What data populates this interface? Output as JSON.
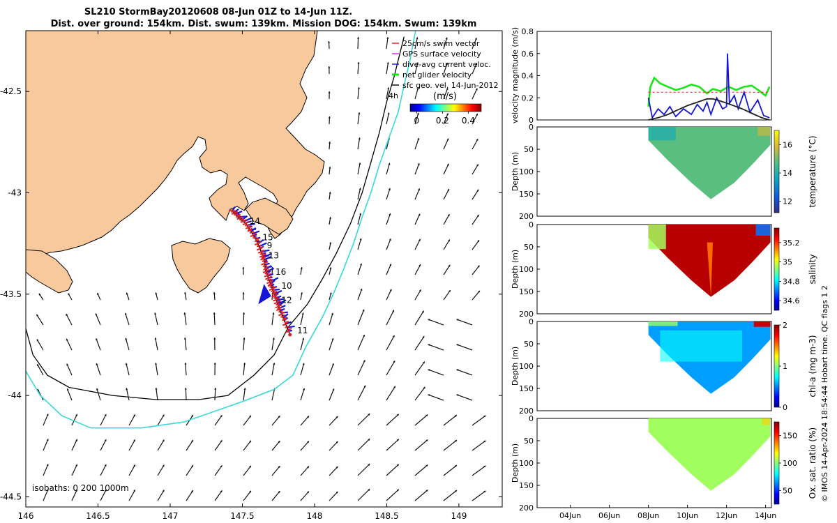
{
  "title": {
    "line1": "SL210 StormBay20120608 08-Jun 01Z to 14-Jun 11Z.",
    "line2": "Dist. over ground: 154km. Dist. swum: 139km. Mission DOG: 154km. Swum: 139km"
  },
  "credit": "© IMOS 14-Apr-2024 18:54:44 Hobart time. QC flags 1  2",
  "colors": {
    "land": "#f8c99c",
    "coast": "#000000",
    "track": "#e0201c",
    "current": "#1515d8",
    "isobath200": "#000000",
    "isobath1000": "#38d8d8",
    "glider": "#19e619",
    "sfc": "#202020"
  },
  "chart_data": [
    {
      "type": "map",
      "name": "glider-track-map",
      "xlim": [
        146.0,
        149.3
      ],
      "ylim": [
        -44.55,
        -42.2
      ],
      "xticks": [
        146,
        146.5,
        147,
        147.5,
        148,
        148.5,
        149
      ],
      "xtick_labels": [
        "146",
        "146.5",
        "147",
        "147.5",
        "148",
        "148.5",
        "149"
      ],
      "yticks": [
        -42.5,
        -43,
        -43.5,
        -44,
        -44.5
      ],
      "ytick_labels": [
        "-42.5",
        "-43",
        "-43.5",
        "-44",
        "-44.5"
      ],
      "legend": [
        {
          "label": "25cm/s swim vector",
          "color": "#e0201c"
        },
        {
          "label": "GPS surface velocity",
          "color": "#d020d0"
        },
        {
          "label": "dive-avg current veloc.",
          "color": "#1515d8"
        },
        {
          "label": "net glider velocity",
          "color": "#19e619"
        },
        {
          "label": "sfc geo. vel. 14-Jun-2012",
          "color": "#000000"
        }
      ],
      "legend_note": "4h",
      "colorbar": {
        "label": "(m/s)",
        "ticks": [
          0,
          0.2,
          0.4
        ],
        "tick_labels": [
          "0",
          "0.2",
          "0.4"
        ],
        "range": [
          -0.05,
          0.5
        ]
      },
      "isobath_label": "isobaths: 0   200  1000m",
      "track": [
        [
          147.43,
          -43.09
        ],
        [
          147.47,
          -43.12
        ],
        [
          147.52,
          -43.15
        ],
        [
          147.56,
          -43.19
        ],
        [
          147.6,
          -43.24
        ],
        [
          147.63,
          -43.29
        ],
        [
          147.65,
          -43.33
        ],
        [
          147.66,
          -43.38
        ],
        [
          147.68,
          -43.42
        ],
        [
          147.7,
          -43.46
        ],
        [
          147.72,
          -43.5
        ],
        [
          147.74,
          -43.54
        ],
        [
          147.76,
          -43.58
        ],
        [
          147.79,
          -43.63
        ],
        [
          147.83,
          -43.7
        ]
      ],
      "day_labels": [
        {
          "text": "14",
          "lon": 147.55,
          "lat": -43.14
        },
        {
          "text": "15",
          "lon": 147.64,
          "lat": -43.22
        },
        {
          "text": "9",
          "lon": 147.67,
          "lat": -43.26
        },
        {
          "text": "13",
          "lon": 147.68,
          "lat": -43.31
        },
        {
          "text": "16",
          "lon": 147.73,
          "lat": -43.39
        },
        {
          "text": "10",
          "lon": 147.77,
          "lat": -43.46
        },
        {
          "text": "12",
          "lon": 147.77,
          "lat": -43.53
        },
        {
          "text": "11",
          "lon": 147.88,
          "lat": -43.68
        }
      ],
      "isobath200": [
        [
          146.0,
          -43.67
        ],
        [
          146.05,
          -43.8
        ],
        [
          146.15,
          -43.9
        ],
        [
          146.3,
          -43.96
        ],
        [
          146.6,
          -44.0
        ],
        [
          146.9,
          -44.02
        ],
        [
          147.2,
          -44.02
        ],
        [
          147.4,
          -44.0
        ],
        [
          147.58,
          -43.9
        ],
        [
          147.72,
          -43.8
        ],
        [
          147.82,
          -43.66
        ],
        [
          147.95,
          -43.55
        ],
        [
          148.05,
          -43.43
        ],
        [
          148.15,
          -43.3
        ],
        [
          148.25,
          -43.15
        ],
        [
          148.33,
          -43.0
        ],
        [
          148.39,
          -42.85
        ],
        [
          148.45,
          -42.7
        ],
        [
          148.5,
          -42.55
        ],
        [
          148.55,
          -42.43
        ],
        [
          148.62,
          -42.23
        ]
      ],
      "isobath1000": [
        [
          146.0,
          -43.88
        ],
        [
          146.1,
          -44.0
        ],
        [
          146.25,
          -44.1
        ],
        [
          146.45,
          -44.16
        ],
        [
          146.8,
          -44.16
        ],
        [
          147.1,
          -44.13
        ],
        [
          147.3,
          -44.08
        ],
        [
          147.5,
          -44.03
        ],
        [
          147.72,
          -43.97
        ],
        [
          147.85,
          -43.9
        ],
        [
          147.94,
          -43.76
        ],
        [
          148.05,
          -43.62
        ],
        [
          148.13,
          -43.5
        ],
        [
          148.2,
          -43.38
        ],
        [
          148.27,
          -43.25
        ],
        [
          148.33,
          -43.12
        ],
        [
          148.39,
          -43.0
        ],
        [
          148.45,
          -42.86
        ],
        [
          148.52,
          -42.72
        ],
        [
          148.58,
          -42.6
        ],
        [
          148.62,
          -42.47
        ],
        [
          148.66,
          -42.35
        ],
        [
          148.7,
          -42.2
        ]
      ]
    },
    {
      "type": "line",
      "name": "velocity-magnitude",
      "ylabel": "velocity magnitude (m/s)",
      "ylim": [
        0,
        0.8
      ],
      "yticks": [
        0,
        0.2,
        0.4,
        0.6,
        0.8
      ],
      "ytick_labels": [
        "0",
        "0.2",
        "0.4",
        "0.6",
        "0.8"
      ],
      "xlim": [
        2.3,
        14.3
      ],
      "series": [
        {
          "name": "net glider velocity",
          "color": "#19e619",
          "x": [
            8.0,
            8.1,
            8.3,
            8.6,
            9.0,
            9.4,
            9.8,
            10.2,
            10.6,
            11.0,
            11.3,
            11.7,
            12.1,
            12.5,
            12.9,
            13.3,
            13.7,
            14.0,
            14.2
          ],
          "y": [
            0.12,
            0.3,
            0.38,
            0.33,
            0.3,
            0.27,
            0.29,
            0.32,
            0.3,
            0.24,
            0.28,
            0.26,
            0.3,
            0.27,
            0.3,
            0.31,
            0.26,
            0.22,
            0.3
          ]
        },
        {
          "name": "dive-avg current veloc.",
          "color": "#1515d8",
          "x": [
            8.0,
            8.2,
            8.5,
            8.8,
            9.1,
            9.4,
            9.8,
            10.2,
            10.5,
            10.8,
            11.0,
            11.2,
            11.5,
            11.8,
            12.0,
            12.05,
            12.15,
            12.4,
            12.6,
            12.9,
            13.2,
            13.6,
            13.9,
            14.2
          ],
          "y": [
            0.2,
            0.02,
            0.1,
            0.05,
            0.12,
            0.03,
            0.1,
            0.05,
            0.14,
            0.08,
            0.16,
            0.05,
            0.2,
            0.1,
            0.12,
            0.6,
            0.15,
            0.22,
            0.1,
            0.25,
            0.07,
            0.18,
            0.04,
            0.02
          ]
        },
        {
          "name": "sfc geo. vel.",
          "color": "#202020",
          "x": [
            8.0,
            8.5,
            9.0,
            9.5,
            10.0,
            10.5,
            11.0,
            11.3,
            11.7,
            12.2,
            12.8,
            13.3,
            13.8,
            14.2
          ],
          "y": [
            0.0,
            0.02,
            0.05,
            0.09,
            0.13,
            0.16,
            0.19,
            0.19,
            0.17,
            0.14,
            0.1,
            0.06,
            0.02,
            0.0
          ]
        },
        {
          "name": "25cm/s swim vector",
          "color": "#e0201c",
          "x": [
            8.0,
            14.2
          ],
          "y": [
            0.25,
            0.25
          ]
        }
      ]
    },
    {
      "type": "heatmap",
      "name": "temperature-section",
      "ylabel": "Depth (m)",
      "cblabel": "temperature (°C)",
      "ylim": [
        200,
        0
      ],
      "yticks": [
        0,
        50,
        100,
        150,
        200
      ],
      "ytick_labels": [
        "0",
        "50",
        "100",
        "150",
        "200"
      ],
      "cbrange": [
        11.2,
        17.0
      ],
      "cbticks": [
        12,
        14,
        16
      ],
      "cbtick_labels": [
        "12",
        "14",
        "16"
      ],
      "palette": "parula",
      "base_value": 14.8
    },
    {
      "type": "heatmap",
      "name": "salinity-section",
      "ylabel": "Depth (m)",
      "cblabel": "salinity",
      "ylim": [
        200,
        0
      ],
      "yticks": [
        0,
        50,
        100,
        150,
        200
      ],
      "ytick_labels": [
        "0",
        "50",
        "100",
        "150",
        "200"
      ],
      "cbrange": [
        34.5,
        35.35
      ],
      "cbticks": [
        34.6,
        34.8,
        35,
        35.2
      ],
      "cbtick_labels": [
        "34.6",
        "34.8",
        "35",
        "35.2"
      ],
      "palette": "jet",
      "base_value": 35.3
    },
    {
      "type": "heatmap",
      "name": "chla-section",
      "ylabel": "Depth (m)",
      "cblabel": "chl-a (mg m-3)",
      "ylim": [
        200,
        0
      ],
      "yticks": [
        0,
        50,
        100,
        150,
        200
      ],
      "ytick_labels": [
        "0",
        "50",
        "100",
        "150",
        "200"
      ],
      "cbrange": [
        0,
        2
      ],
      "cbticks": [
        0,
        1,
        2
      ],
      "cbtick_labels": [
        "0",
        "1",
        "2"
      ],
      "palette": "jet",
      "base_value": 0.55
    },
    {
      "type": "heatmap",
      "name": "oxygen-section",
      "ylabel": "Depth (m)",
      "cblabel": "Ox. sat. ratio (%)",
      "ylim": [
        200,
        0
      ],
      "yticks": [
        0,
        50,
        100,
        150,
        200
      ],
      "ytick_labels": [
        "0",
        "50",
        "100",
        "150",
        "200"
      ],
      "cbrange": [
        25,
        175
      ],
      "cbticks": [
        50,
        100,
        150
      ],
      "cbtick_labels": [
        "50",
        "100",
        "150"
      ],
      "palette": "jet",
      "base_value": 104,
      "xticks": [
        4,
        6,
        8,
        10,
        12,
        14
      ],
      "xtick_labels": [
        "04Jun",
        "06Jun",
        "08Jun",
        "10Jun",
        "12Jun",
        "14Jun"
      ]
    }
  ]
}
